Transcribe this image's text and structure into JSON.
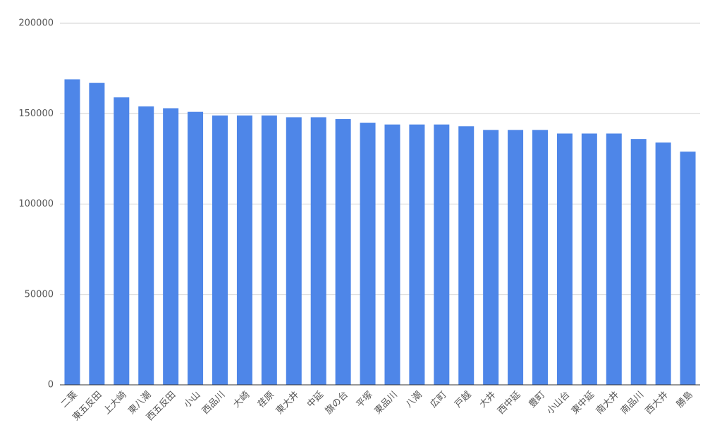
{
  "chart_data": {
    "type": "bar",
    "categories": [
      "二葉",
      "東五反田",
      "上大崎",
      "東八潮",
      "西五反田",
      "小山",
      "西品川",
      "大崎",
      "荏原",
      "東大井",
      "中延",
      "旗の台",
      "平塚",
      "東品川",
      "八潮",
      "広町",
      "戸越",
      "大井",
      "西中延",
      "豊町",
      "小山台",
      "東中延",
      "南大井",
      "南品川",
      "西大井",
      "勝島"
    ],
    "values": [
      169000,
      167000,
      159000,
      154000,
      153000,
      151000,
      149000,
      149000,
      149000,
      148000,
      148000,
      147000,
      145000,
      144000,
      144000,
      144000,
      143000,
      141000,
      141000,
      141000,
      139000,
      139000,
      139000,
      136000,
      134000,
      129000
    ],
    "color": "#4e86e8",
    "ylim": [
      0,
      200000
    ],
    "yticks": [
      0,
      50000,
      100000,
      150000,
      200000
    ],
    "grid": true
  }
}
